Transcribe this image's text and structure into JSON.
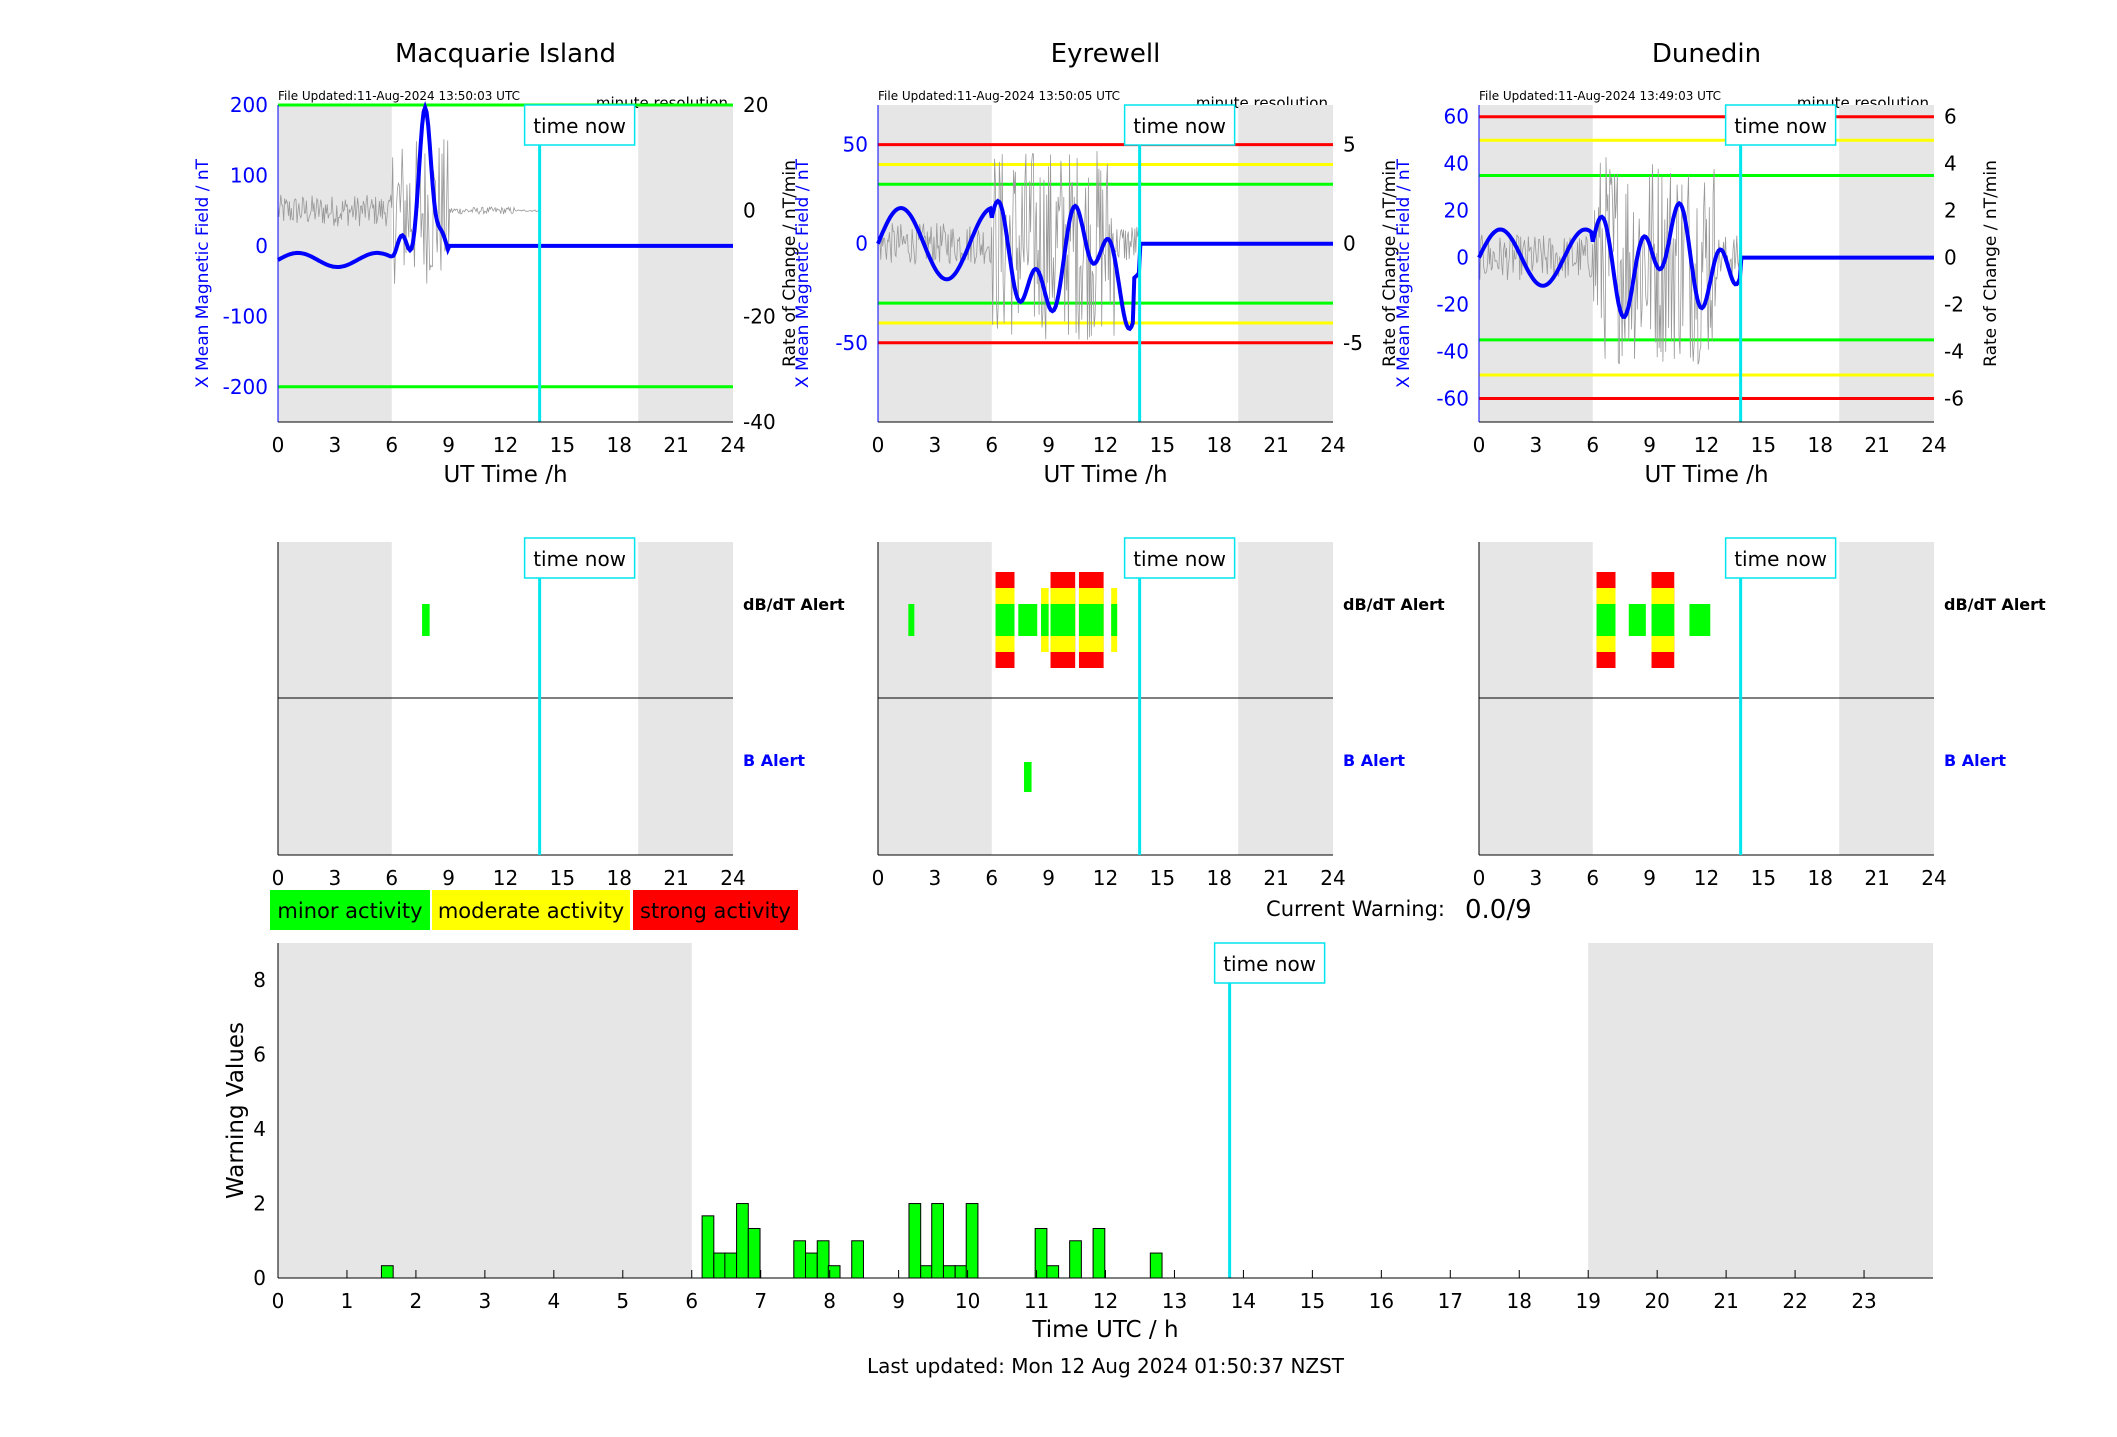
{
  "colors": {
    "minor": "#00ff00",
    "moderate": "#ffff00",
    "strong": "#ff0000",
    "now": "#00e5ee",
    "field": "#0000ff",
    "shade": "#e6e6e6"
  },
  "panels": [
    {
      "title": "Macquarie Island",
      "file_updated": "File Updated:11-Aug-2024 13:50:03 UTC",
      "resolution": "minute resolution",
      "ylabel": "X Mean Magnetic Field / nT",
      "y2label": "Rate of Change / nT/min",
      "yticks": [
        200,
        100,
        0,
        -100,
        -200
      ],
      "ylim": [
        -250,
        200
      ],
      "y2ticks": [
        20,
        0,
        -20,
        -40
      ],
      "y2lim": [
        -40,
        20
      ],
      "thresholds": [
        {
          "value": 200,
          "level": "minor"
        },
        {
          "value": -200,
          "level": "minor"
        }
      ]
    },
    {
      "title": "Eyrewell",
      "file_updated": "File Updated:11-Aug-2024 13:50:05 UTC",
      "resolution": "minute resolution",
      "ylabel": "X Mean Magnetic Field / nT",
      "y2label": "Rate of Change / nT/min",
      "yticks": [
        50,
        0,
        -50
      ],
      "ylim": [
        -90,
        70
      ],
      "y2ticks": [
        5,
        0,
        -5
      ],
      "y2lim": [
        -9,
        7
      ],
      "thresholds": [
        {
          "value": 50,
          "level": "strong"
        },
        {
          "value": 40,
          "level": "moderate"
        },
        {
          "value": 30,
          "level": "minor"
        },
        {
          "value": -30,
          "level": "minor"
        },
        {
          "value": -40,
          "level": "moderate"
        },
        {
          "value": -50,
          "level": "strong"
        }
      ]
    },
    {
      "title": "Dunedin",
      "file_updated": "File Updated:11-Aug-2024 13:49:03 UTC",
      "resolution": "minute resolution",
      "ylabel": "X Mean Magnetic Field / nT",
      "y2label": "Rate of Change / nT/min",
      "yticks": [
        60,
        40,
        20,
        0,
        -20,
        -40,
        -60
      ],
      "ylim": [
        -70,
        65
      ],
      "y2ticks": [
        6,
        4,
        2,
        0,
        -2,
        -4,
        -6
      ],
      "y2lim": [
        -7,
        6.5
      ],
      "thresholds": [
        {
          "value": 60,
          "level": "strong"
        },
        {
          "value": 50,
          "level": "moderate"
        },
        {
          "value": 35,
          "level": "minor"
        },
        {
          "value": -35,
          "level": "minor"
        },
        {
          "value": -50,
          "level": "moderate"
        },
        {
          "value": -60,
          "level": "strong"
        }
      ]
    }
  ],
  "xticks": [
    0,
    3,
    6,
    9,
    12,
    15,
    18,
    21,
    24
  ],
  "xlabel": "UT Time /h",
  "time_now": 13.8,
  "time_now_label": "time now",
  "shaded": [
    [
      0,
      6
    ],
    [
      19,
      24
    ]
  ],
  "alerts_labels": {
    "dbdt": "dB/dT Alert",
    "b": "B Alert"
  },
  "alerts": [
    {
      "dbdt": [
        [
          7.6,
          8,
          "minor"
        ]
      ],
      "b": []
    },
    {
      "dbdt": [
        [
          1.6,
          1.9,
          "minor"
        ],
        [
          6.2,
          7.2,
          "strong"
        ],
        [
          7.4,
          8.4,
          "minor"
        ],
        [
          8.6,
          9,
          "moderate"
        ],
        [
          9.1,
          10.4,
          "strong"
        ],
        [
          10.6,
          11.9,
          "strong"
        ],
        [
          12.3,
          12.6,
          "moderate"
        ]
      ],
      "b": [
        [
          7.7,
          8.1,
          "minor"
        ]
      ]
    },
    {
      "dbdt": [
        [
          6.2,
          7.2,
          "strong"
        ],
        [
          7.9,
          8.8,
          "minor"
        ],
        [
          9.1,
          10.3,
          "strong"
        ],
        [
          11.1,
          12.2,
          "minor"
        ]
      ],
      "b": []
    }
  ],
  "legend": [
    "minor activity",
    "moderate activity",
    "strong activity"
  ],
  "current_warning": {
    "label": "Current Warning:",
    "value": "0.0/9"
  },
  "chart_data": {
    "type": "bar",
    "ylabel": "Warning Values",
    "xlabel": "Time UTC / h",
    "ylim": [
      0,
      9
    ],
    "yticks": [
      0,
      2,
      4,
      6,
      8
    ],
    "xticks": [
      0,
      1,
      2,
      3,
      4,
      5,
      6,
      7,
      8,
      9,
      10,
      11,
      12,
      13,
      14,
      15,
      16,
      17,
      18,
      19,
      20,
      21,
      22,
      23
    ],
    "bars": [
      [
        1.5,
        0.33
      ],
      [
        6.15,
        1.67
      ],
      [
        6.32,
        0.67
      ],
      [
        6.48,
        0.67
      ],
      [
        6.65,
        2
      ],
      [
        6.82,
        1.33
      ],
      [
        7.48,
        1
      ],
      [
        7.65,
        0.67
      ],
      [
        7.82,
        1
      ],
      [
        7.98,
        0.33
      ],
      [
        8.32,
        1
      ],
      [
        9.15,
        2
      ],
      [
        9.32,
        0.33
      ],
      [
        9.48,
        2
      ],
      [
        9.65,
        0.33
      ],
      [
        9.82,
        0.33
      ],
      [
        9.98,
        2
      ],
      [
        10.98,
        1.33
      ],
      [
        11.15,
        0.33
      ],
      [
        11.48,
        1
      ],
      [
        11.82,
        1.33
      ],
      [
        12.65,
        0.67
      ]
    ]
  },
  "footer": "Last updated: Mon 12 Aug 2024 01:50:37 NZST"
}
